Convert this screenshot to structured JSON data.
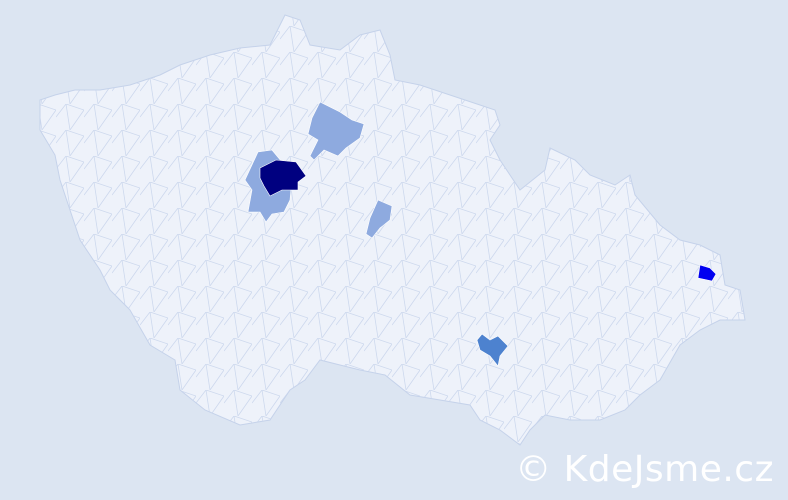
{
  "map": {
    "background_color": "#dce5f2",
    "country_fill": "#eef2fa",
    "border_color": "#c5d2ea",
    "highlighted_regions": [
      {
        "id": "prague",
        "color": "#000080"
      },
      {
        "id": "central-bohemia-around-prague",
        "color": "#8eaadf"
      },
      {
        "id": "north-central-bohemia",
        "color": "#8eaadf"
      },
      {
        "id": "east-central-bohemia",
        "color": "#8eaadf"
      },
      {
        "id": "south-moravia",
        "color": "#4d82cf"
      },
      {
        "id": "northeast-moravia",
        "color": "#0000f0"
      }
    ]
  },
  "watermark": "© KdeJsme.cz"
}
